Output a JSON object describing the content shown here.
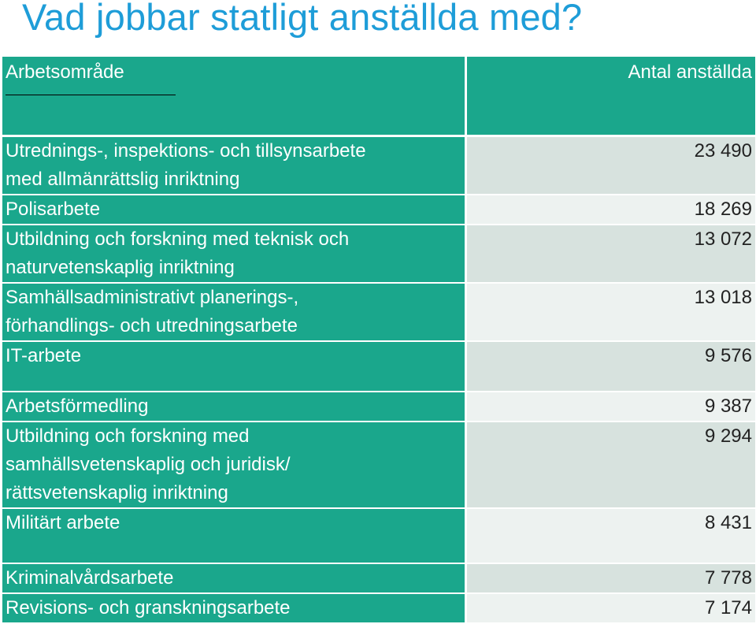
{
  "title": "Vad jobbar statligt anställda med?",
  "table": {
    "header": {
      "area": "Arbetsområde",
      "count": "Antal anställda"
    },
    "rows": [
      {
        "area": "Utrednings-, inspektions- och tillsynsarbete\nmed allmänrättslig inriktning",
        "count": "23 490"
      },
      {
        "area": "Polisarbete",
        "count": "18 269"
      },
      {
        "area": "Utbildning och forskning med teknisk och\nnaturvetenskaplig inriktning",
        "count": "13 072"
      },
      {
        "area": "Samhällsadministrativt planerings-,\nförhandlings- och utredningsarbete",
        "count": "13 018"
      },
      {
        "area": "IT-arbete",
        "count": "9 576"
      },
      {
        "area": "Arbetsförmedling",
        "count": "9 387"
      },
      {
        "area": "Utbildning och forskning med\nsamhällsvetenskaplig och juridisk/\nrättsvetenskaplig inriktning",
        "count": "9 294"
      },
      {
        "area": "Militärt arbete",
        "count": "8 431"
      },
      {
        "area": "Kriminalvårdsarbete",
        "count": "7 778"
      },
      {
        "area": "Revisions- och granskningsarbete",
        "count": "7 174"
      }
    ]
  },
  "colors": {
    "title": "#1e9dd8",
    "header_bg": "#1aa78c",
    "row_bg_a": "#d7e2de",
    "row_bg_b": "#edf2f0"
  }
}
